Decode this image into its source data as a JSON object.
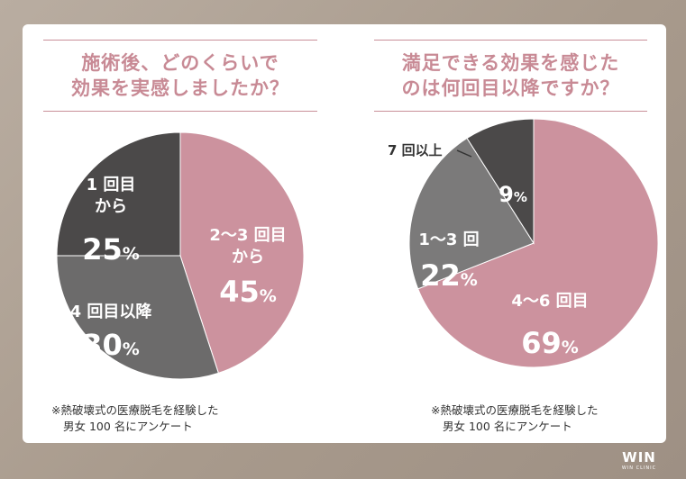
{
  "panels": [
    {
      "title_lines": [
        "施術後、どのくらいで",
        "効果を実感しましたか？"
      ],
      "note_lines": [
        "※熱破壊式の医療脱毛を経験した",
        "男女 100 名にアンケート"
      ]
    },
    {
      "title_lines": [
        "満足できる効果を感じた",
        "のは何回目以降ですか？"
      ],
      "note_lines": [
        "※熱破壊式の医療脱毛を経験した",
        "男女 100 名にアンケート"
      ]
    }
  ],
  "chart_data": [
    {
      "type": "pie",
      "title": "施術後、どのくらいで効果を実感しましたか？",
      "slices": [
        {
          "label": "2〜3 回目から",
          "value": 45,
          "value_text": "45",
          "unit": "%",
          "color": "#cc929e"
        },
        {
          "label": "4 回目以降",
          "value": 30,
          "value_text": "30",
          "unit": "%",
          "color": "#6c6b6b"
        },
        {
          "label": "1 回目から",
          "value": 25,
          "value_text": "25",
          "unit": "%",
          "color": "#4b4949"
        }
      ]
    },
    {
      "type": "pie",
      "title": "満足できる効果を感じたのは何回目以降ですか？",
      "slices": [
        {
          "label": "4〜6 回目",
          "value": 69,
          "value_text": "69",
          "unit": "%",
          "color": "#cc929e"
        },
        {
          "label": "1〜3 回",
          "value": 22,
          "value_text": "22",
          "unit": "%",
          "color": "#7b7a7a"
        },
        {
          "label": "7 回以上",
          "value": 9,
          "value_text": "9",
          "unit": "%",
          "color": "#4b4949"
        }
      ]
    }
  ],
  "brand": {
    "logo": "WIN",
    "sub": "WIN CLINIC"
  }
}
